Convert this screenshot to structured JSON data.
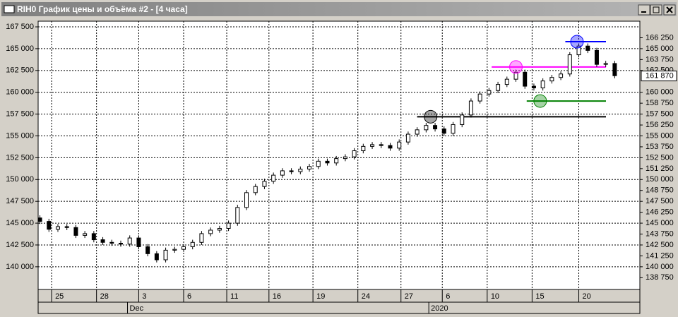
{
  "chart_data": {
    "type": "candlestick",
    "title": "RIH0 График цены и объёма #2 - [4 часа]",
    "ylim": [
      137400,
      168150
    ],
    "xlim": [
      -0.2,
      66.8
    ],
    "grid": true,
    "up_color": "#ffffff",
    "down_color": "#000000",
    "yticks": [
      {
        "value": 167500,
        "label": "167 500"
      },
      {
        "value": 165000,
        "label": "165 000"
      },
      {
        "value": 162500,
        "label": "162 500"
      },
      {
        "value": 160000,
        "label": "160 000"
      },
      {
        "value": 157500,
        "label": "157 500"
      },
      {
        "value": 155000,
        "label": "155 000"
      },
      {
        "value": 152500,
        "label": "152 500"
      },
      {
        "value": 150000,
        "label": "150 000"
      },
      {
        "value": 147500,
        "label": "147 500"
      },
      {
        "value": 145000,
        "label": "145 000"
      },
      {
        "value": 142500,
        "label": "142 500"
      },
      {
        "value": 140000,
        "label": "140 000"
      }
    ],
    "y2ticks": [
      {
        "value": 166250,
        "label": "166 250"
      },
      {
        "value": 165000,
        "label": "165 000"
      },
      {
        "value": 163750,
        "label": "163 750"
      },
      {
        "value": 162500,
        "label": "162 500"
      },
      {
        "value": 160000,
        "label": "160 000"
      },
      {
        "value": 158750,
        "label": "158 750"
      },
      {
        "value": 157500,
        "label": "157 500"
      },
      {
        "value": 156250,
        "label": "156 250"
      },
      {
        "value": 155000,
        "label": "155 000"
      },
      {
        "value": 153750,
        "label": "153 750"
      },
      {
        "value": 152500,
        "label": "152 500"
      },
      {
        "value": 151250,
        "label": "151 250"
      },
      {
        "value": 150000,
        "label": "150 000"
      },
      {
        "value": 148750,
        "label": "148 750"
      },
      {
        "value": 147500,
        "label": "147 500"
      },
      {
        "value": 146250,
        "label": "146 250"
      },
      {
        "value": 145000,
        "label": "145 000"
      },
      {
        "value": 143750,
        "label": "143 750"
      },
      {
        "value": 142500,
        "label": "142 500"
      },
      {
        "value": 141250,
        "label": "141 250"
      },
      {
        "value": 140000,
        "label": "140 000"
      },
      {
        "value": 138750,
        "label": "138 750"
      }
    ],
    "price_label": {
      "value": 161870,
      "label": "161 870"
    },
    "xticks": [
      {
        "value": 1.3,
        "label": "25"
      },
      {
        "value": 6.3,
        "label": "28"
      },
      {
        "value": 11,
        "label": "3"
      },
      {
        "value": 16,
        "label": "6"
      },
      {
        "value": 20.8,
        "label": "11"
      },
      {
        "value": 25.5,
        "label": "16"
      },
      {
        "value": 30.4,
        "label": "19"
      },
      {
        "value": 35.4,
        "label": "24"
      },
      {
        "value": 40.2,
        "label": "27"
      },
      {
        "value": 44.8,
        "label": "6"
      },
      {
        "value": 49.8,
        "label": "10"
      },
      {
        "value": 54.8,
        "label": "15"
      },
      {
        "value": 60,
        "label": "20"
      }
    ],
    "xticks_months": [
      {
        "value": 9.75,
        "label": "Dec"
      },
      {
        "value": 43.3,
        "label": "2020"
      }
    ],
    "open": [
      145600,
      145200,
      144300,
      144600,
      144500,
      143600,
      143800,
      143100,
      142800,
      142700,
      142600,
      143300,
      142300,
      141500,
      140800,
      141900,
      142000,
      142300,
      142800,
      143800,
      144200,
      144400,
      145000,
      146800,
      148500,
      149200,
      149800,
      150500,
      151000,
      150900,
      151200,
      151500,
      152100,
      151900,
      152400,
      152600,
      153300,
      153800,
      154000,
      153900,
      153600,
      154300,
      155200,
      155700,
      156200,
      155800,
      155300,
      156300,
      157400,
      159000,
      159800,
      160200,
      160900,
      161500,
      162300,
      160700,
      160500,
      161300,
      161700,
      162100,
      164300,
      165300,
      164800,
      163200,
      163300
    ],
    "high": [
      145900,
      145500,
      144900,
      144900,
      144800,
      144100,
      144100,
      143400,
      143100,
      143000,
      143600,
      143600,
      142600,
      141800,
      142200,
      142300,
      142600,
      143100,
      144100,
      144500,
      144700,
      145300,
      147100,
      148800,
      149500,
      150100,
      150800,
      151300,
      151300,
      151500,
      151800,
      152400,
      152400,
      152700,
      152900,
      153600,
      154100,
      154300,
      154300,
      154200,
      154600,
      155500,
      156000,
      156500,
      156500,
      156100,
      156600,
      157700,
      159300,
      160100,
      160500,
      161200,
      161800,
      162600,
      162600,
      161000,
      161600,
      162000,
      162400,
      164600,
      165600,
      165600,
      165100,
      163600,
      163600
    ],
    "low": [
      144900,
      144000,
      144000,
      144200,
      143300,
      143300,
      142800,
      142500,
      142400,
      142300,
      142300,
      142000,
      141200,
      140500,
      140500,
      141600,
      141700,
      142000,
      142500,
      143500,
      143900,
      144100,
      144700,
      146500,
      148200,
      148900,
      149500,
      150200,
      150600,
      150600,
      150900,
      151200,
      151600,
      151600,
      152100,
      152300,
      153000,
      153500,
      153600,
      153300,
      153300,
      154000,
      154900,
      155400,
      155500,
      155000,
      155000,
      156000,
      157100,
      158700,
      159500,
      159900,
      160600,
      161200,
      160400,
      160200,
      160200,
      161000,
      161400,
      161800,
      164000,
      164500,
      162900,
      162900,
      161600
    ],
    "close": [
      145200,
      144300,
      144600,
      144500,
      143600,
      143800,
      143100,
      142800,
      142700,
      142600,
      143300,
      142300,
      141500,
      140800,
      141900,
      142000,
      142300,
      142800,
      143800,
      144200,
      144400,
      145000,
      146800,
      148500,
      149200,
      149800,
      150500,
      151000,
      150900,
      151200,
      151500,
      152100,
      151900,
      152400,
      152600,
      153300,
      153800,
      154000,
      153900,
      153600,
      154300,
      155200,
      155700,
      156200,
      155800,
      155300,
      156300,
      157400,
      159000,
      159800,
      160200,
      160900,
      161500,
      162300,
      160700,
      160500,
      161300,
      161700,
      162100,
      164300,
      165300,
      164800,
      163200,
      163300,
      161900
    ],
    "levels": [
      {
        "value": 165800,
        "color": "#0000ff",
        "from": 58.5,
        "anchor": 59.8
      },
      {
        "value": 162900,
        "color": "#ff00ff",
        "from": 50.3,
        "anchor": 53
      },
      {
        "value": 159000,
        "color": "#008000",
        "from": 54.2,
        "anchor": 55.7
      },
      {
        "value": 157200,
        "color": "#000000",
        "from": 42,
        "anchor": 43.5
      }
    ]
  }
}
